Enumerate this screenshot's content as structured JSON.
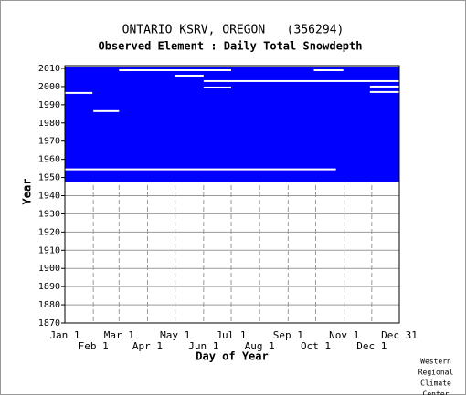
{
  "chart_data": {
    "type": "availability",
    "title": "ONTARIO KSRV, OREGON   (356294)",
    "subtitle": "Observed Element : Daily Total Snowdepth",
    "x_label": "Day of Year",
    "y_label": "Year",
    "credit": [
      "Western",
      "Regional",
      "Climate",
      "Center"
    ],
    "color": "#0000ff",
    "xlim": [
      1,
      365
    ],
    "ylim": [
      1870,
      2010
    ],
    "xticks": [
      {
        "value": 1,
        "label": "Jan 1"
      },
      {
        "value": 32,
        "label": "Feb 1"
      },
      {
        "value": 60,
        "label": "Mar 1"
      },
      {
        "value": 91,
        "label": "Apr 1"
      },
      {
        "value": 121,
        "label": "May 1"
      },
      {
        "value": 152,
        "label": "Jun 1"
      },
      {
        "value": 182,
        "label": "Jul 1"
      },
      {
        "value": 213,
        "label": "Aug 1"
      },
      {
        "value": 244,
        "label": "Sep 1"
      },
      {
        "value": 274,
        "label": "Oct 1"
      },
      {
        "value": 305,
        "label": "Nov 1"
      },
      {
        "value": 335,
        "label": "Dec 1"
      },
      {
        "value": 365,
        "label": "Dec 31"
      }
    ],
    "yticks": [
      1870,
      1880,
      1890,
      1900,
      1910,
      1920,
      1930,
      1940,
      1950,
      1960,
      1970,
      1980,
      1990,
      2000,
      2010
    ],
    "coverage": [
      1947.5,
      2011
    ],
    "gaps": [
      [
        1954.5,
        1,
        296
      ],
      [
        2009,
        60,
        182
      ],
      [
        2009,
        272,
        304
      ],
      [
        2003,
        152,
        365
      ],
      [
        2006,
        121,
        152
      ],
      [
        1999.5,
        152,
        182
      ],
      [
        1996.5,
        1,
        31
      ],
      [
        1986.5,
        32,
        60
      ],
      [
        2000,
        333,
        365
      ],
      [
        1997,
        333,
        365
      ]
    ]
  }
}
